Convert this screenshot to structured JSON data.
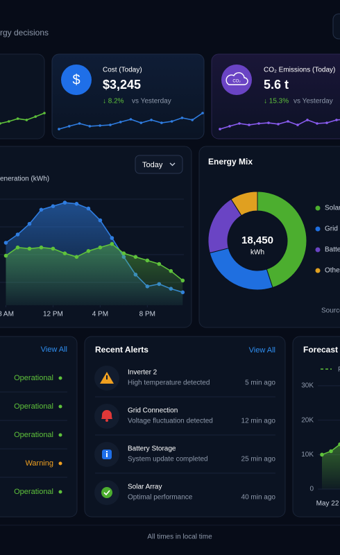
{
  "header": {
    "subtitle": "rgy decisions"
  },
  "cards": [
    {
      "icon": "$",
      "label": "Cost (Today)",
      "value": "$3,245",
      "change": "↓ 8.2%",
      "comparison": "vs Yesterday"
    },
    {
      "icon": "CO₂",
      "label": "CO₂ Emissions (Today)",
      "value": "5.6 t",
      "change": "↓ 15.3%",
      "comparison": "vs Yesterday"
    }
  ],
  "generation_controls": {
    "period": "Today"
  },
  "status_panel": {
    "link": "View All",
    "rows": [
      {
        "label": "Operational",
        "color": "#5fc23b"
      },
      {
        "label": "Operational",
        "color": "#5fc23b"
      },
      {
        "label": "Operational",
        "color": "#5fc23b"
      },
      {
        "label": "Warning",
        "color": "#f0a020"
      },
      {
        "label": "Operational",
        "color": "#5fc23b"
      }
    ]
  },
  "alerts": {
    "title": "Recent Alerts",
    "link": "View All",
    "items": [
      {
        "title": "Inverter 2",
        "detail": "High temperature detected",
        "time": "5 min ago"
      },
      {
        "title": "Grid Connection",
        "detail": "Voltage fluctuation detected",
        "time": "12 min ago"
      },
      {
        "title": "Battery Storage",
        "detail": "System update completed",
        "time": "25 min ago"
      },
      {
        "title": "Solar Array",
        "detail": "Optimal performance",
        "time": "40 min ago"
      }
    ]
  },
  "footer": "All times in local time",
  "chart_data": [
    {
      "type": "line",
      "color": "#5fc23b",
      "ylim": [
        0,
        100
      ],
      "values": [
        40,
        50,
        63,
        57,
        73,
        90
      ]
    },
    {
      "type": "line",
      "color": "#2f7de1",
      "ylim": [
        0,
        100
      ],
      "values": [
        13,
        27,
        40,
        27,
        30,
        33,
        47,
        60,
        43,
        57,
        43,
        50,
        67,
        57,
        90
      ]
    },
    {
      "type": "line",
      "color": "#8a5cf0",
      "ylim": [
        0,
        100
      ],
      "values": [
        13,
        27,
        40,
        33,
        40,
        43,
        37,
        50,
        33,
        57,
        40,
        43,
        57,
        60
      ]
    },
    {
      "type": "line",
      "title": "eneration (kWh)",
      "x": [
        8,
        9,
        10,
        11,
        12,
        13,
        14,
        15,
        16,
        17,
        18,
        19,
        20,
        21,
        22,
        23
      ],
      "xlim": [
        7.5,
        23.1
      ],
      "xticks": [
        {
          "value": 8,
          "label": "8 AM"
        },
        {
          "value": 12,
          "label": "12 PM"
        },
        {
          "value": 16,
          "label": "4 PM"
        },
        {
          "value": 20,
          "label": "8 PM"
        }
      ],
      "ylim": [
        0,
        1000
      ],
      "series": [
        {
          "color": "#2f7de1",
          "values": [
            530,
            600,
            690,
            810,
            840,
            870,
            860,
            820,
            720,
            570,
            410,
            260,
            160,
            180,
            140,
            110
          ]
        },
        {
          "color": "#5fc23b",
          "values": [
            420,
            490,
            480,
            490,
            480,
            440,
            410,
            460,
            490,
            520,
            440,
            410,
            380,
            350,
            290,
            210
          ]
        }
      ]
    },
    {
      "type": "pie",
      "title": "Energy Mix",
      "center_label": "18,450",
      "center_unit": "kWh",
      "note": "Source",
      "categories": [
        "Solar",
        "Grid",
        "Batte",
        "Othe"
      ],
      "values": [
        45,
        26,
        20,
        9
      ],
      "colors": [
        "#4cae2f",
        "#1f6fe0",
        "#6a44c4",
        "#e0a020"
      ]
    },
    {
      "type": "line",
      "title": "Forecast (",
      "categories": [
        "May 22",
        null,
        null
      ],
      "ylim": [
        0,
        30000
      ],
      "yticks": [
        0,
        {
          "value": 10000,
          "label": "10K"
        },
        {
          "value": 20000,
          "label": "20K"
        },
        {
          "value": 30000,
          "label": "30K"
        }
      ],
      "series": [
        {
          "name": "P",
          "color": "#5fc23b",
          "values": [
            10000,
            11000,
            13000
          ]
        }
      ]
    }
  ]
}
